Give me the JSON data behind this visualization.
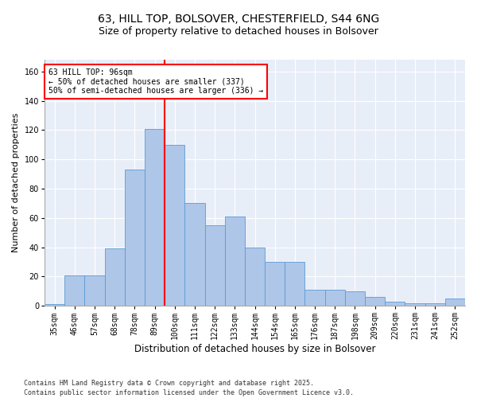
{
  "title": "63, HILL TOP, BOLSOVER, CHESTERFIELD, S44 6NG",
  "subtitle": "Size of property relative to detached houses in Bolsover",
  "xlabel": "Distribution of detached houses by size in Bolsover",
  "ylabel": "Number of detached properties",
  "categories": [
    "35sqm",
    "46sqm",
    "57sqm",
    "68sqm",
    "78sqm",
    "89sqm",
    "100sqm",
    "111sqm",
    "122sqm",
    "133sqm",
    "144sqm",
    "154sqm",
    "165sqm",
    "176sqm",
    "187sqm",
    "198sqm",
    "209sqm",
    "220sqm",
    "231sqm",
    "241sqm",
    "252sqm"
  ],
  "values": [
    1,
    21,
    21,
    39,
    93,
    121,
    110,
    70,
    55,
    61,
    40,
    30,
    30,
    11,
    11,
    10,
    6,
    3,
    2,
    2,
    5
  ],
  "bar_color": "#aec6e8",
  "bar_edge_color": "#5b9bd5",
  "background_color": "#e8eef8",
  "grid_color": "#ffffff",
  "vline_x": 6.0,
  "vline_color": "red",
  "annotation_title": "63 HILL TOP: 96sqm",
  "annotation_line1": "← 50% of detached houses are smaller (337)",
  "annotation_line2": "50% of semi-detached houses are larger (336) →",
  "ylim": [
    0,
    168
  ],
  "yticks": [
    0,
    20,
    40,
    60,
    80,
    100,
    120,
    140,
    160
  ],
  "footnote": "Contains HM Land Registry data © Crown copyright and database right 2025.\nContains public sector information licensed under the Open Government Licence v3.0.",
  "title_fontsize": 10,
  "subtitle_fontsize": 9,
  "xlabel_fontsize": 8.5,
  "ylabel_fontsize": 8,
  "tick_fontsize": 7,
  "annotation_fontsize": 7,
  "footnote_fontsize": 6
}
